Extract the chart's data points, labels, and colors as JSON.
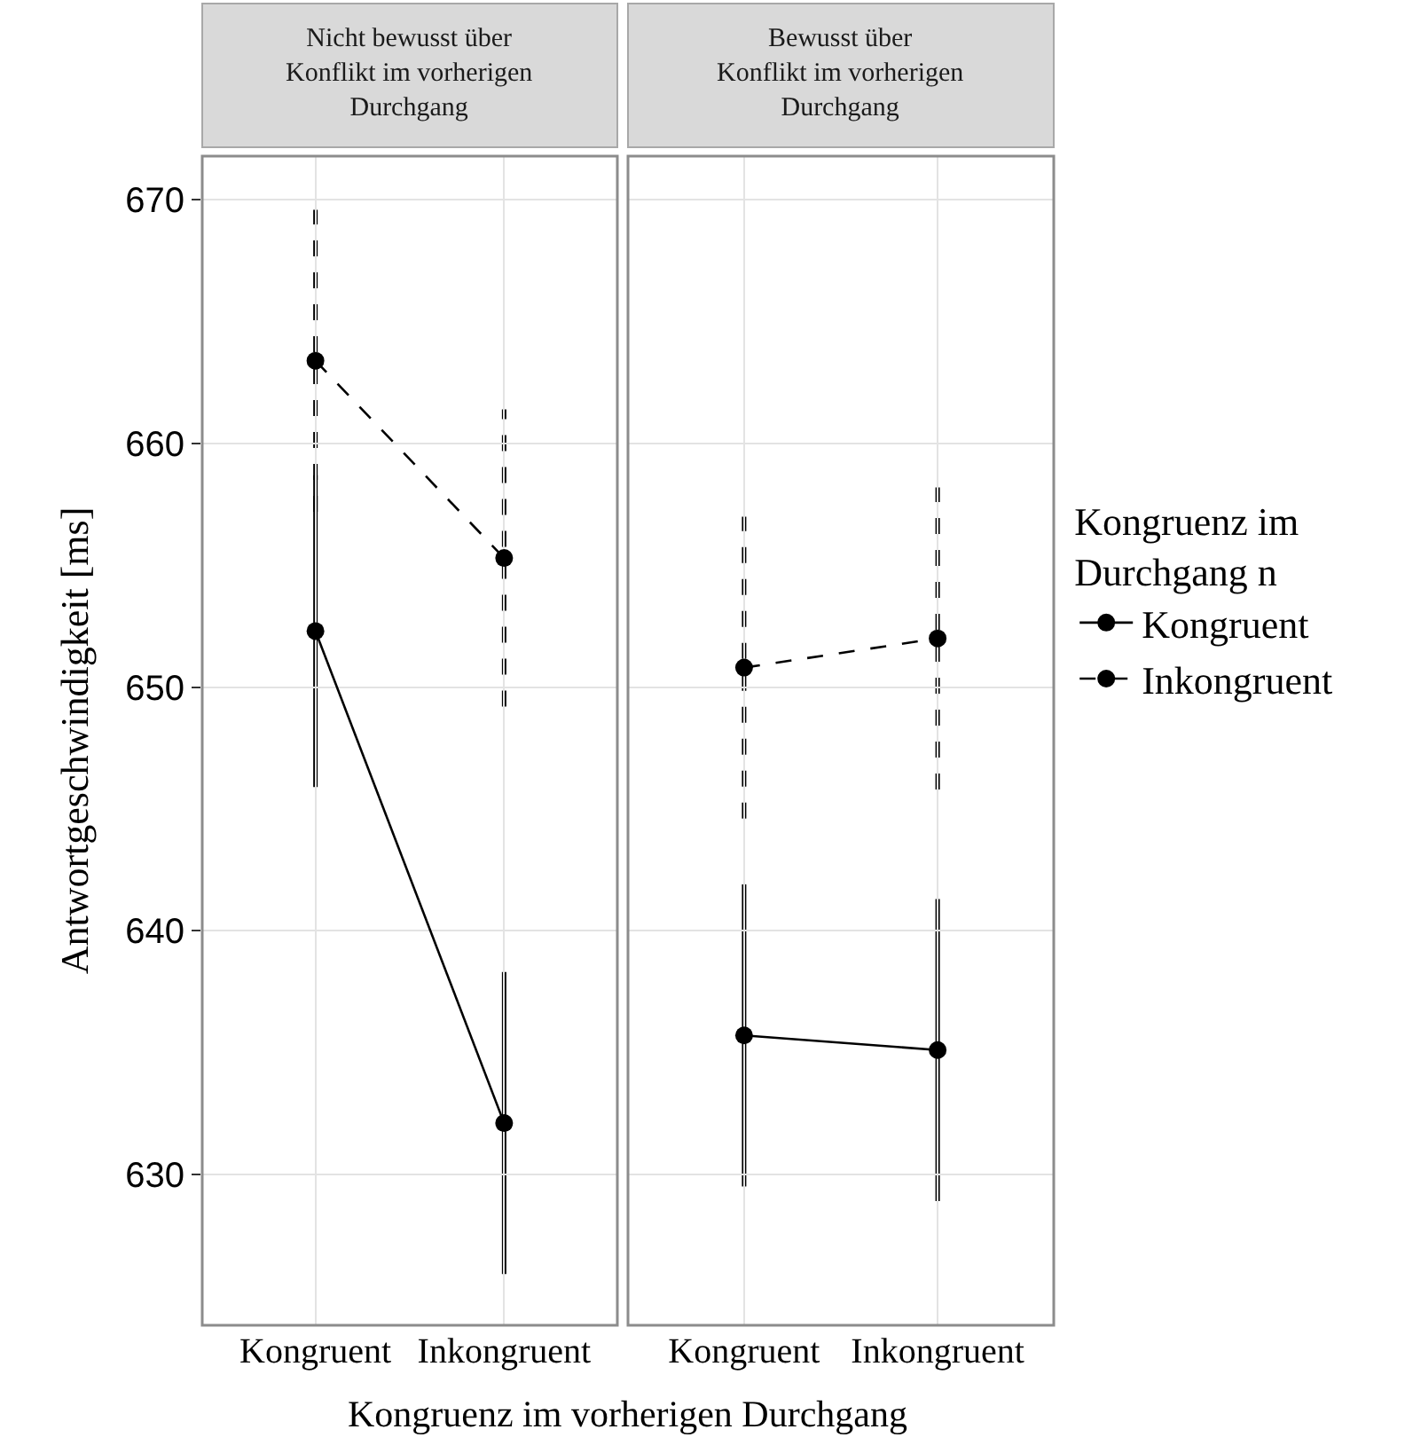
{
  "chart_data": [
    {
      "type": "line",
      "title": "Nicht bewusst über\nKonflikt im vorherigen\nDurchgang",
      "ylabel": "Antwortgeschwindigkeit [ms]",
      "categories": [
        "Kongruent",
        "Inkongruent"
      ],
      "ylim": [
        623.8,
        671.8
      ],
      "yticks": [
        630,
        640,
        650,
        660,
        670
      ],
      "grid": true,
      "marker": "circle",
      "legend": false,
      "series": [
        {
          "color": "#000000",
          "line_style": "solid",
          "values": [
            652.3,
            632.1
          ],
          "errors": [
            6.4,
            6.2
          ]
        },
        {
          "color": "#000000",
          "line_style": "dashed",
          "values": [
            663.4,
            655.3
          ],
          "errors": [
            6.2,
            6.1
          ]
        }
      ]
    },
    {
      "type": "line",
      "title": "Bewusst über\nKonflikt im vorherigen\nDurchgang",
      "xlabel": "Kongruenz im vorherigen Durchgang",
      "legend_title": "Kongruenz im\nDurchgang n",
      "categories": [
        "Kongruent",
        "Inkongruent"
      ],
      "ylim": [
        623.8,
        671.8
      ],
      "yticks": [
        630,
        640,
        650,
        660,
        670
      ],
      "tick_labels": "x",
      "grid": true,
      "marker": "circle",
      "legend": "right",
      "series": [
        {
          "name": "Kongruent",
          "color": "#000000",
          "line_style": "solid",
          "values": [
            635.7,
            635.1
          ],
          "errors": [
            6.2,
            6.2
          ]
        },
        {
          "name": "Inkongruent",
          "color": "#000000",
          "line_style": "dashed",
          "values": [
            650.8,
            652.0
          ],
          "errors": [
            6.2,
            6.2
          ]
        }
      ]
    }
  ]
}
